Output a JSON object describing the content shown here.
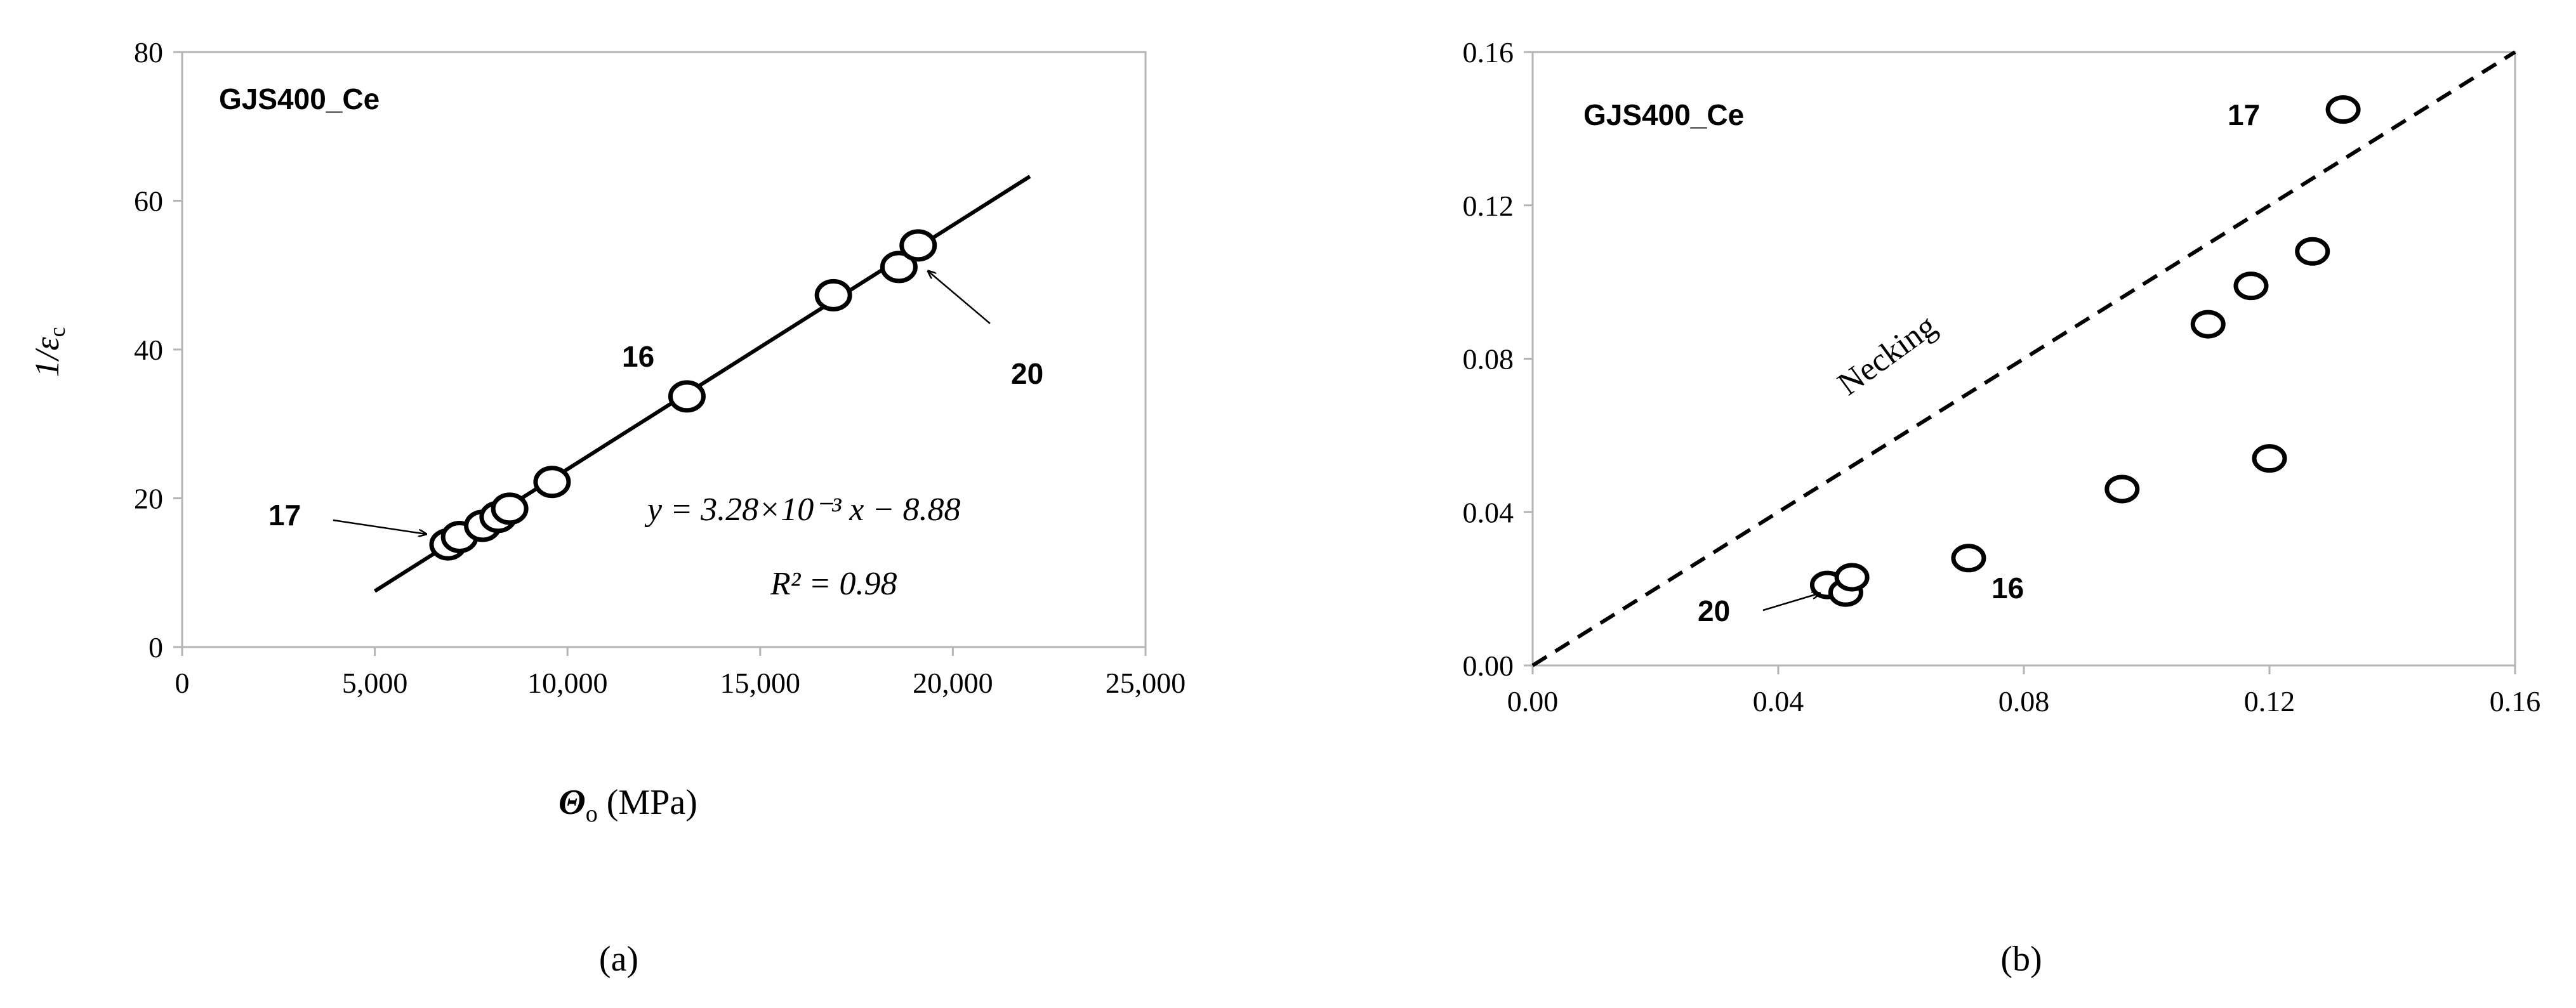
{
  "panels": [
    {
      "label": "(a)"
    },
    {
      "label": "(b)"
    }
  ],
  "chart_data": [
    {
      "type": "scatter",
      "panel": "a",
      "annotation_title": "GJS400_Ce",
      "xlabel_symbol": "Θ",
      "xlabel_subscript": "o",
      "xlabel_units": "(MPa)",
      "ylabel": "1/ε",
      "ylabel_subscript": "c",
      "xlim": [
        0,
        25000
      ],
      "ylim": [
        0,
        80
      ],
      "x_ticks": [
        0,
        5000,
        10000,
        15000,
        20000,
        25000
      ],
      "x_tick_labels": [
        "0",
        "5,000",
        "10,000",
        "15,000",
        "20,000",
        "25,000"
      ],
      "y_ticks": [
        0,
        20,
        40,
        60,
        80
      ],
      "y_tick_labels": [
        "0",
        "20",
        "40",
        "60",
        "80"
      ],
      "grid": false,
      "points": [
        {
          "x": 6900,
          "y": 13.8
        },
        {
          "x": 7200,
          "y": 14.8
        },
        {
          "x": 7800,
          "y": 16.3
        },
        {
          "x": 8200,
          "y": 17.5
        },
        {
          "x": 8500,
          "y": 18.6
        },
        {
          "x": 9600,
          "y": 22.2
        },
        {
          "x": 13100,
          "y": 33.7
        },
        {
          "x": 16900,
          "y": 47.3
        },
        {
          "x": 18600,
          "y": 51.1
        },
        {
          "x": 19100,
          "y": 54.0
        }
      ],
      "fit": {
        "slope": 0.00328,
        "intercept": -8.88,
        "x_range": [
          5000,
          22000
        ],
        "equation_text": "y = 3.28×10⁻³ x − 8.88",
        "r2_text": "R² = 0.98"
      },
      "point_labels": [
        {
          "text": "17",
          "x": 6900,
          "y": 13.8,
          "with_arrow": true
        },
        {
          "text": "16",
          "x": 13100,
          "y": 33.7,
          "with_arrow": false
        },
        {
          "text": "20",
          "x": 19100,
          "y": 54.0,
          "with_arrow": true
        }
      ]
    },
    {
      "type": "scatter",
      "panel": "b",
      "annotation_title": "GJS400_Ce",
      "xlim": [
        0,
        0.16
      ],
      "ylim": [
        0,
        0.16
      ],
      "x_ticks": [
        0,
        0.04,
        0.08,
        0.12,
        0.16
      ],
      "x_tick_labels": [
        "0.00",
        "0.04",
        "0.08",
        "0.12",
        "0.16"
      ],
      "y_ticks": [
        0,
        0.04,
        0.08,
        0.12,
        0.16
      ],
      "y_tick_labels": [
        "0.00",
        "0.04",
        "0.08",
        "0.12",
        "0.16"
      ],
      "grid": false,
      "points": [
        {
          "x": 0.048,
          "y": 0.021
        },
        {
          "x": 0.051,
          "y": 0.019
        },
        {
          "x": 0.052,
          "y": 0.023
        },
        {
          "x": 0.071,
          "y": 0.028
        },
        {
          "x": 0.096,
          "y": 0.046
        },
        {
          "x": 0.11,
          "y": 0.089
        },
        {
          "x": 0.117,
          "y": 0.099
        },
        {
          "x": 0.12,
          "y": 0.054
        },
        {
          "x": 0.127,
          "y": 0.108
        },
        {
          "x": 0.132,
          "y": 0.145
        }
      ],
      "reference_line": {
        "label": "Necking",
        "from": [
          0,
          0
        ],
        "to": [
          0.16,
          0.16
        ],
        "style": "dashed"
      },
      "point_labels": [
        {
          "text": "20",
          "x": 0.048,
          "y": 0.021,
          "with_arrow": true
        },
        {
          "text": "16",
          "x": 0.071,
          "y": 0.028,
          "with_arrow": false
        },
        {
          "text": "17",
          "x": 0.132,
          "y": 0.145,
          "with_arrow": false
        }
      ]
    }
  ]
}
